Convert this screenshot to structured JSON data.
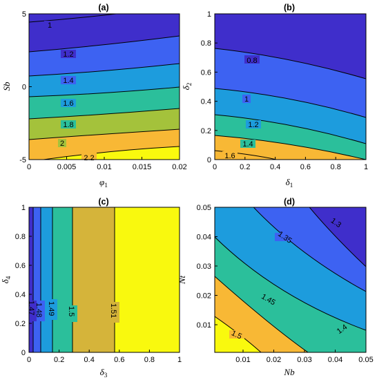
{
  "colors": {
    "c0": "#3f2ecb",
    "c1": "#3d62f2",
    "c2": "#1d9cdd",
    "c3": "#2bbf9b",
    "c4": "#a4c23b",
    "c5": "#f8b835",
    "c6": "#f9f90e",
    "c_ochre": "#d5b43a"
  },
  "chart_data": [
    {
      "id": "a",
      "type": "contour",
      "title": "(a)",
      "xlabel": "φ",
      "xlabel_sub": "1",
      "ylabel": "Sb",
      "ylabel_sub": "",
      "xlim": [
        0,
        0.02
      ],
      "ylim": [
        -5,
        5
      ],
      "xticks": [
        "0",
        "0.005",
        "0.01",
        "0.015",
        "0.02"
      ],
      "yticks": [
        "-5",
        "0",
        "5"
      ],
      "contour_levels": [
        "1",
        "1.2",
        "1.4",
        "1.6",
        "1.8",
        "2",
        "2.2"
      ]
    },
    {
      "id": "b",
      "type": "contour",
      "title": "(b)",
      "xlabel": "δ",
      "xlabel_sub": "1",
      "ylabel": "δ",
      "ylabel_sub": "2",
      "xlim": [
        0,
        1
      ],
      "ylim": [
        0,
        1
      ],
      "xticks": [
        "0",
        "0.2",
        "0.4",
        "0.6",
        "0.8",
        "1"
      ],
      "yticks": [
        "0",
        "0.2",
        "0.4",
        "0.6",
        "0.8",
        "1"
      ],
      "contour_levels": [
        "0.8",
        "1",
        "1.2",
        "1.4",
        "1.6"
      ]
    },
    {
      "id": "c",
      "type": "contour",
      "title": "(c)",
      "xlabel": "δ",
      "xlabel_sub": "3",
      "ylabel": "δ",
      "ylabel_sub": "4",
      "xlim": [
        0,
        1
      ],
      "ylim": [
        0,
        1
      ],
      "xticks": [
        "0",
        "0.2",
        "0.4",
        "0.6",
        "0.8",
        "1"
      ],
      "yticks": [
        "0",
        "0.2",
        "0.4",
        "0.6",
        "0.8",
        "1"
      ],
      "contour_levels": [
        "1.47",
        "1.48",
        "1.49",
        "1.5",
        "1.51"
      ]
    },
    {
      "id": "d",
      "type": "contour",
      "title": "(d)",
      "xlabel": "Nb",
      "xlabel_sub": "",
      "ylabel": "Nt",
      "ylabel_sub": "",
      "xlim": [
        0.001,
        0.05
      ],
      "ylim": [
        0.001,
        0.05
      ],
      "xticks": [
        "0.01",
        "0.02",
        "0.03",
        "0.04",
        "0.05"
      ],
      "yticks": [
        "0.01",
        "0.02",
        "0.03",
        "0.04",
        "0.05"
      ],
      "contour_levels": [
        "1.3",
        "1.35",
        "1.4",
        "1.45",
        "1.5"
      ]
    }
  ]
}
